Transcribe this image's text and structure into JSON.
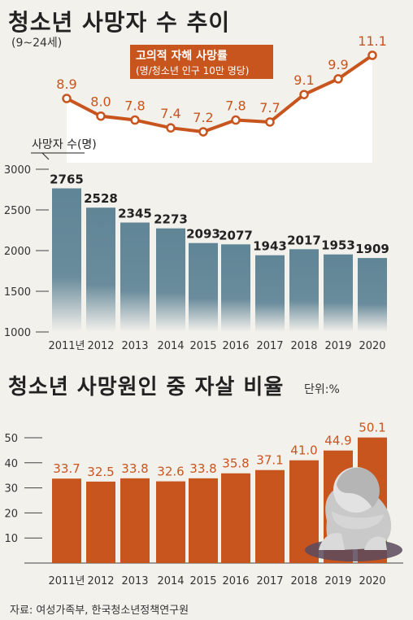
{
  "title": "청소년 사망자 수 추이",
  "subtitle": "(9~24세)",
  "source": "자료: 여성가족부, 한국청소년정책연구원",
  "colors": {
    "orange": "#c8551e",
    "blue": "#5f8596",
    "bg": "#f3f1ec"
  },
  "chart_data": [
    {
      "type": "line",
      "title": "고의적 자해 사망률",
      "subtitle": "(명/청소년 인구 10만 명당)",
      "categories": [
        "2011",
        "2012",
        "2013",
        "2014",
        "2015",
        "2016",
        "2017",
        "2018",
        "2019",
        "2020"
      ],
      "values": [
        8.9,
        8.0,
        7.8,
        7.4,
        7.2,
        7.8,
        7.7,
        9.1,
        9.9,
        11.1
      ],
      "labels": [
        "8.9",
        "8.0",
        "7.8",
        "7.4",
        "7.2",
        "7.8",
        "7.7",
        "9.1",
        "9.9",
        "11.1"
      ]
    },
    {
      "type": "bar",
      "title": "",
      "ylabel": "사망자 수(명)",
      "categories": [
        "2011",
        "2012",
        "2013",
        "2014",
        "2015",
        "2016",
        "2017",
        "2018",
        "2019",
        "2020"
      ],
      "category_labels": [
        "2011년",
        "2012",
        "2013",
        "2014",
        "2015",
        "2016",
        "2017",
        "2018",
        "2019",
        "2020"
      ],
      "values": [
        2765,
        2528,
        2345,
        2273,
        2093,
        2077,
        1943,
        2017,
        1953,
        1909
      ],
      "labels": [
        "2765",
        "2528",
        "2345",
        "2273",
        "2093",
        "2077",
        "1943",
        "2017",
        "1953",
        "1909"
      ],
      "ylim": [
        1000,
        3000
      ],
      "yticks": [
        1000,
        1500,
        2000,
        2500,
        3000
      ]
    },
    {
      "type": "bar",
      "title": "청소년 사망원인 중 자살 비율",
      "unit": "단위:%",
      "categories": [
        "2011",
        "2012",
        "2013",
        "2014",
        "2015",
        "2016",
        "2017",
        "2018",
        "2019",
        "2020"
      ],
      "category_labels": [
        "2011년",
        "2012",
        "2013",
        "2014",
        "2015",
        "2016",
        "2017",
        "2018",
        "2019",
        "2020"
      ],
      "values": [
        33.7,
        32.5,
        33.8,
        32.6,
        33.8,
        35.8,
        37.1,
        41.0,
        44.9,
        50.1
      ],
      "labels": [
        "33.7",
        "32.5",
        "33.8",
        "32.6",
        "33.8",
        "35.8",
        "37.1",
        "41.0",
        "44.9",
        "50.1"
      ],
      "ylim": [
        0,
        50
      ],
      "yticks": [
        10,
        20,
        30,
        40,
        50
      ]
    }
  ]
}
